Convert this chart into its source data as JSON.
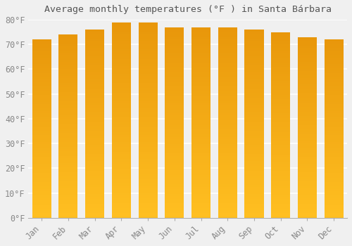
{
  "title": "Average monthly temperatures (°F ) in Santa Bárbara",
  "months": [
    "Jan",
    "Feb",
    "Mar",
    "Apr",
    "May",
    "Jun",
    "Jul",
    "Aug",
    "Sep",
    "Oct",
    "Nov",
    "Dec"
  ],
  "values": [
    72,
    74,
    76,
    79,
    79,
    77,
    77,
    77,
    76,
    75,
    73,
    72
  ],
  "ylim": [
    0,
    80
  ],
  "yticks": [
    0,
    10,
    20,
    30,
    40,
    50,
    60,
    70,
    80
  ],
  "ytick_labels": [
    "0°F",
    "10°F",
    "20°F",
    "30°F",
    "40°F",
    "50°F",
    "60°F",
    "70°F",
    "80°F"
  ],
  "bar_color_top": "#F5A800",
  "bar_color_bottom": "#FFCC44",
  "background_color": "#f0f0f0",
  "grid_color": "#ffffff",
  "title_fontsize": 9.5,
  "tick_fontsize": 8.5,
  "bar_width": 0.72
}
